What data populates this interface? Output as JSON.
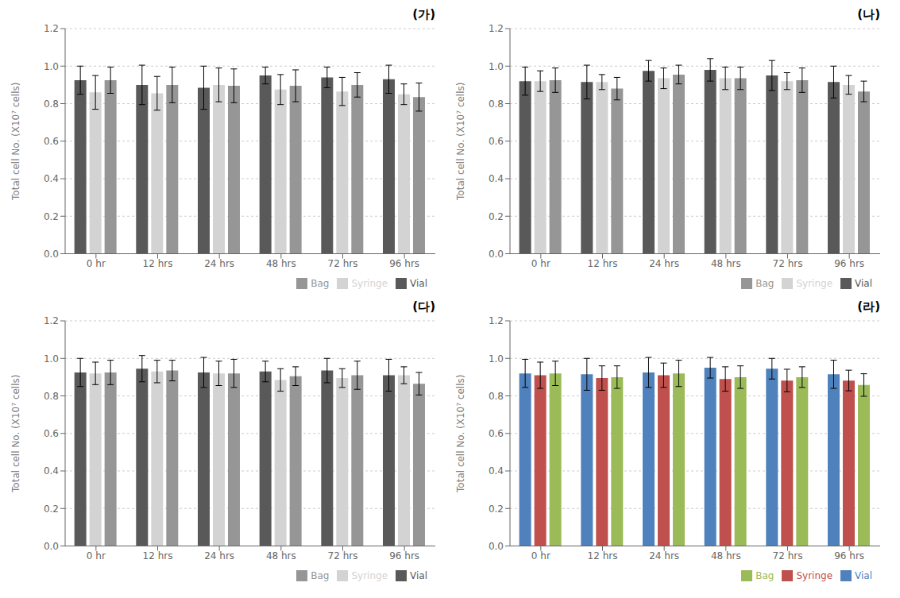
{
  "chart_data": [
    {
      "type": "bar",
      "title": "(가)",
      "y_label": "Total  cell No. (X10⁷ cells)",
      "categories": [
        "0 hr",
        "12 hrs",
        "24 hrs",
        "48 hrs",
        "72 hrs",
        "96 hrs"
      ],
      "series": [
        {
          "name": "Vial",
          "color": "#595959",
          "values": [
            0.925,
            0.9,
            0.885,
            0.95,
            0.94,
            0.93
          ],
          "errors": [
            0.075,
            0.105,
            0.115,
            0.045,
            0.055,
            0.075
          ]
        },
        {
          "name": "Syringe",
          "color": "#d3d3d3",
          "values": [
            0.86,
            0.855,
            0.9,
            0.875,
            0.865,
            0.85
          ],
          "errors": [
            0.09,
            0.09,
            0.09,
            0.08,
            0.075,
            0.055
          ]
        },
        {
          "name": "Bag",
          "color": "#969696",
          "values": [
            0.925,
            0.9,
            0.895,
            0.895,
            0.9,
            0.835
          ],
          "errors": [
            0.07,
            0.095,
            0.09,
            0.085,
            0.065,
            0.075
          ]
        }
      ],
      "ylim": [
        0,
        1.2
      ],
      "yticks": [
        {
          "value": 0.0,
          "label": "0.0"
        },
        0.2,
        0.4,
        0.6,
        0.8,
        {
          "value": 1.0,
          "label": "1.0"
        },
        1.2
      ],
      "grid": true,
      "legend": "lower right"
    },
    {
      "type": "bar",
      "title": "(나)",
      "y_label": "Total  cell No. (X10⁷ cells)",
      "categories": [
        "0 hr",
        "12 hrs",
        "24 hrs",
        "48 hrs",
        "72 hrs",
        "96 hrs"
      ],
      "series": [
        {
          "name": "Vial",
          "color": "#595959",
          "values": [
            0.92,
            0.915,
            0.975,
            0.98,
            0.95,
            0.915
          ],
          "errors": [
            0.075,
            0.09,
            0.055,
            0.06,
            0.08,
            0.085
          ]
        },
        {
          "name": "Syringe",
          "color": "#d3d3d3",
          "values": [
            0.92,
            0.915,
            0.935,
            0.935,
            0.92,
            0.9
          ],
          "errors": [
            0.055,
            0.04,
            0.055,
            0.06,
            0.045,
            0.05
          ]
        },
        {
          "name": "Bag",
          "color": "#969696",
          "values": [
            0.925,
            0.88,
            0.955,
            0.935,
            0.925,
            0.865
          ],
          "errors": [
            0.065,
            0.06,
            0.05,
            0.06,
            0.065,
            0.055
          ]
        }
      ],
      "ylim": [
        0,
        1.2
      ],
      "yticks": [
        {
          "value": 0.0,
          "label": "0.0"
        },
        0.2,
        0.4,
        0.6,
        0.8,
        {
          "value": 1.0,
          "label": "1.0"
        },
        1.2
      ],
      "grid": true,
      "legend": "lower right"
    },
    {
      "type": "bar",
      "title": "(다)",
      "y_label": "Total  cell No. (X10⁷ cells)",
      "categories": [
        "0 hr",
        "12 hrs",
        "24 hrs",
        "48 hrs",
        "72 hrs",
        "96 hrs"
      ],
      "series": [
        {
          "name": "Vial",
          "color": "#595959",
          "values": [
            0.925,
            0.945,
            0.925,
            0.93,
            0.935,
            0.91
          ],
          "errors": [
            0.075,
            0.07,
            0.08,
            0.055,
            0.065,
            0.085
          ]
        },
        {
          "name": "Syringe",
          "color": "#d3d3d3",
          "values": [
            0.92,
            0.93,
            0.92,
            0.885,
            0.895,
            0.91
          ],
          "errors": [
            0.06,
            0.06,
            0.065,
            0.06,
            0.05,
            0.045
          ]
        },
        {
          "name": "Bag",
          "color": "#969696",
          "values": [
            0.925,
            0.935,
            0.92,
            0.905,
            0.91,
            0.865
          ],
          "errors": [
            0.065,
            0.055,
            0.075,
            0.05,
            0.075,
            0.06
          ]
        }
      ],
      "ylim": [
        0,
        1.2
      ],
      "yticks": [
        {
          "value": 0.0,
          "label": "0.0"
        },
        0.2,
        0.4,
        0.6,
        0.8,
        {
          "value": 1.0,
          "label": "1.0"
        },
        1.2
      ],
      "grid": true,
      "legend": "lower right"
    },
    {
      "type": "bar",
      "title": "(라)",
      "y_label": "Total  cell No. (X10⁷ cells)",
      "categories": [
        "0 hr",
        "12 hrs",
        "24 hrs",
        "48 hrs",
        "72 hrs",
        "96 hrs"
      ],
      "series": [
        {
          "name": "Vial",
          "color": "#4F81BD",
          "values": [
            0.92,
            0.915,
            0.925,
            0.95,
            0.945,
            0.915
          ],
          "errors": [
            0.075,
            0.085,
            0.08,
            0.055,
            0.055,
            0.075
          ]
        },
        {
          "name": "Syringe",
          "color": "#C0504D",
          "values": [
            0.91,
            0.895,
            0.91,
            0.89,
            0.882,
            0.882
          ],
          "errors": [
            0.07,
            0.065,
            0.065,
            0.065,
            0.06,
            0.055
          ]
        },
        {
          "name": "Bag",
          "color": "#9BBB59",
          "values": [
            0.92,
            0.9,
            0.92,
            0.9,
            0.9,
            0.858
          ],
          "errors": [
            0.065,
            0.06,
            0.07,
            0.06,
            0.055,
            0.06
          ]
        }
      ],
      "ylim": [
        0,
        1.2
      ],
      "yticks": [
        {
          "value": 0.0,
          "label": "0.0"
        },
        0.2,
        0.4,
        0.6,
        0.8,
        {
          "value": 1.0,
          "label": "1.0"
        },
        1.2
      ],
      "grid": true,
      "legend": "lower right"
    }
  ]
}
